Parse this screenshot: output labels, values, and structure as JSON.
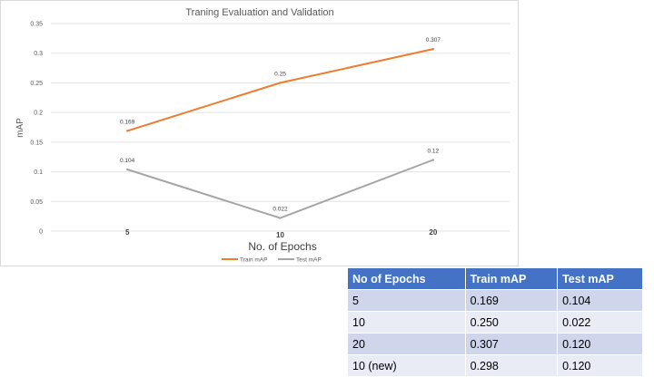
{
  "chart_data": {
    "type": "line",
    "title": "Traning Evaluation and Validation",
    "xlabel": "No. of Epochs",
    "ylabel": "mAP",
    "categories": [
      "5",
      "10",
      "20"
    ],
    "ylim": [
      0,
      0.35
    ],
    "yticks": [
      "0",
      "0.05",
      "0.1",
      "0.15",
      "0.2",
      "0.25",
      "0.3",
      "0.35"
    ],
    "grid": true,
    "legend": "bottom",
    "series": [
      {
        "name": "Train mAP",
        "values": [
          0.169,
          0.25,
          0.307
        ],
        "labels": [
          "0.169",
          "0.25",
          "0.307"
        ],
        "color": "#ed7d31"
      },
      {
        "name": "Test mAP",
        "values": [
          0.104,
          0.022,
          0.12
        ],
        "labels": [
          "0.104",
          "0.022",
          "0.12"
        ],
        "color": "#a5a5a5"
      }
    ]
  },
  "table": {
    "headers": [
      "No of Epochs",
      "Train mAP",
      "Test mAP"
    ],
    "rows": [
      [
        "5",
        "0.169",
        "0.104"
      ],
      [
        "10",
        "0.250",
        "0.022"
      ],
      [
        "20",
        "0.307",
        "0.120"
      ],
      [
        "10 (new)",
        "0.298",
        "0.120"
      ]
    ]
  }
}
